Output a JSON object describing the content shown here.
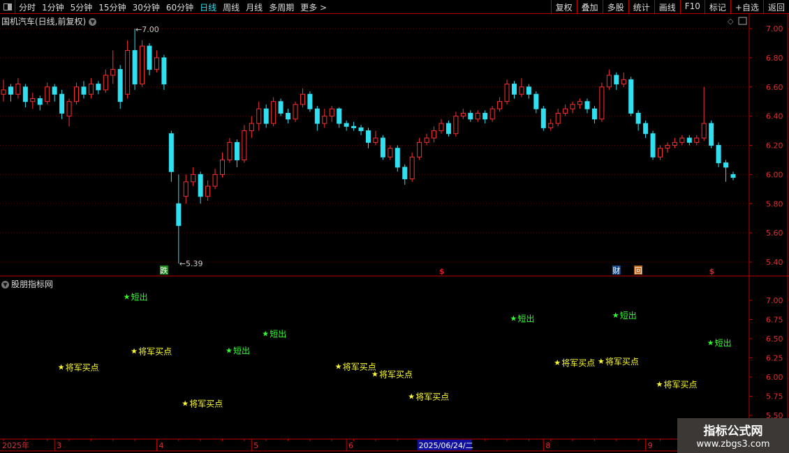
{
  "toolbar": {
    "periods": [
      "分时",
      "1分钟",
      "5分钟",
      "15分钟",
      "30分钟",
      "60分钟",
      "日线",
      "周线",
      "月线",
      "多周期",
      "更多 >"
    ],
    "active": "日线",
    "tools": [
      "复权",
      "叠加",
      "多股",
      "统计",
      "画线",
      "F10",
      "标记",
      "+自选",
      "返回"
    ]
  },
  "main": {
    "title": "国机汽车(日线,前复权)",
    "max_label": "7.00",
    "min_label": "5.39",
    "price_axis": [
      "7.00",
      "6.80",
      "6.60",
      "6.40",
      "6.20",
      "6.00",
      "5.80",
      "5.60",
      "5.40"
    ],
    "markers": [
      {
        "i": 22,
        "text": "跌",
        "color": "#1a8a1a"
      },
      {
        "i": 60,
        "text": "$",
        "color": "#e02020"
      },
      {
        "i": 84,
        "text": "财",
        "color": "#1a4a8a"
      },
      {
        "i": 87,
        "text": "回",
        "color": "#c06010"
      },
      {
        "i": 97,
        "text": "$",
        "color": "#e02020"
      }
    ]
  },
  "indicator": {
    "title": "股朋指标网",
    "axis": [
      "7.00",
      "6.75",
      "6.50",
      "6.25",
      "6.00",
      "5.75",
      "5.50"
    ],
    "signals": [
      {
        "i": 8,
        "v": 6.13,
        "text": "将军买点",
        "color": "#ffff30"
      },
      {
        "i": 17,
        "v": 7.05,
        "text": "短出",
        "color": "#30ff30"
      },
      {
        "i": 18,
        "v": 6.34,
        "text": "将军买点",
        "color": "#ffff30"
      },
      {
        "i": 25,
        "v": 5.66,
        "text": "将军买点",
        "color": "#ffff30"
      },
      {
        "i": 31,
        "v": 6.35,
        "text": "短出",
        "color": "#30ff30"
      },
      {
        "i": 36,
        "v": 6.57,
        "text": "短出",
        "color": "#30ff30"
      },
      {
        "i": 46,
        "v": 6.14,
        "text": "将军买点",
        "color": "#ffff30"
      },
      {
        "i": 51,
        "v": 6.04,
        "text": "将军买点",
        "color": "#ffff30"
      },
      {
        "i": 56,
        "v": 5.75,
        "text": "将军买点",
        "color": "#ffff30"
      },
      {
        "i": 70,
        "v": 6.77,
        "text": "短出",
        "color": "#30ff30"
      },
      {
        "i": 76,
        "v": 6.19,
        "text": "将军买点",
        "color": "#ffff30"
      },
      {
        "i": 82,
        "v": 6.21,
        "text": "将军买点",
        "color": "#ffff30"
      },
      {
        "i": 84,
        "v": 6.81,
        "text": "短出",
        "color": "#30ff30"
      },
      {
        "i": 90,
        "v": 5.91,
        "text": "将军买点",
        "color": "#ffff30"
      },
      {
        "i": 97,
        "v": 6.45,
        "text": "短出",
        "color": "#30ff30"
      }
    ]
  },
  "date_axis": {
    "year": "2025年",
    "months": [
      {
        "i": 7,
        "label": "3"
      },
      {
        "i": 21,
        "label": "4"
      },
      {
        "i": 34,
        "label": "5"
      },
      {
        "i": 47,
        "label": "6"
      },
      {
        "i": 74,
        "label": "8"
      },
      {
        "i": 88,
        "label": "9"
      }
    ],
    "cursor": {
      "i": 57,
      "label": "2025/06/24/二"
    }
  },
  "watermark": {
    "line1": "指标公式网",
    "line2": "www.zbgs3.com"
  },
  "colors": {
    "up": "#ff3030",
    "down": "#30e0f0",
    "axis": "#c00000"
  },
  "chart_data": {
    "type": "candlestick",
    "ylim": [
      5.35,
      7.05
    ],
    "ohlc": [
      [
        6.55,
        6.65,
        6.5,
        6.58
      ],
      [
        6.6,
        6.62,
        6.5,
        6.55
      ],
      [
        6.55,
        6.66,
        6.52,
        6.62
      ],
      [
        6.6,
        6.62,
        6.46,
        6.5
      ],
      [
        6.5,
        6.56,
        6.45,
        6.52
      ],
      [
        6.52,
        6.54,
        6.44,
        6.48
      ],
      [
        6.5,
        6.63,
        6.48,
        6.6
      ],
      [
        6.6,
        6.62,
        6.5,
        6.55
      ],
      [
        6.55,
        6.58,
        6.38,
        6.42
      ],
      [
        6.4,
        6.52,
        6.33,
        6.5
      ],
      [
        6.5,
        6.63,
        6.48,
        6.6
      ],
      [
        6.6,
        6.64,
        6.52,
        6.55
      ],
      [
        6.55,
        6.66,
        6.52,
        6.62
      ],
      [
        6.62,
        6.64,
        6.55,
        6.58
      ],
      [
        6.58,
        6.72,
        6.56,
        6.68
      ],
      [
        6.68,
        6.85,
        6.62,
        6.72
      ],
      [
        6.72,
        6.75,
        6.45,
        6.5
      ],
      [
        6.55,
        6.92,
        6.52,
        6.85
      ],
      [
        6.85,
        7.0,
        6.58,
        6.62
      ],
      [
        6.62,
        6.92,
        6.6,
        6.88
      ],
      [
        6.88,
        6.9,
        6.68,
        6.72
      ],
      [
        6.72,
        6.85,
        6.7,
        6.8
      ],
      [
        6.8,
        6.82,
        6.58,
        6.62
      ],
      [
        6.28,
        6.3,
        5.95,
        6.02
      ],
      [
        5.8,
        6.0,
        5.39,
        5.65
      ],
      [
        5.85,
        6.0,
        5.8,
        5.95
      ],
      [
        5.95,
        6.05,
        5.92,
        6.0
      ],
      [
        6.0,
        6.02,
        5.8,
        5.85
      ],
      [
        5.85,
        5.96,
        5.82,
        5.92
      ],
      [
        5.92,
        6.04,
        5.9,
        6.0
      ],
      [
        6.0,
        6.15,
        5.98,
        6.1
      ],
      [
        6.1,
        6.25,
        6.08,
        6.22
      ],
      [
        6.22,
        6.24,
        6.05,
        6.1
      ],
      [
        6.1,
        6.34,
        6.08,
        6.3
      ],
      [
        6.3,
        6.4,
        6.25,
        6.35
      ],
      [
        6.35,
        6.5,
        6.3,
        6.45
      ],
      [
        6.45,
        6.48,
        6.32,
        6.35
      ],
      [
        6.35,
        6.53,
        6.33,
        6.5
      ],
      [
        6.5,
        6.52,
        6.4,
        6.42
      ],
      [
        6.42,
        6.45,
        6.35,
        6.38
      ],
      [
        6.38,
        6.5,
        6.36,
        6.48
      ],
      [
        6.48,
        6.59,
        6.46,
        6.55
      ],
      [
        6.55,
        6.57,
        6.43,
        6.45
      ],
      [
        6.45,
        6.47,
        6.3,
        6.35
      ],
      [
        6.35,
        6.45,
        6.32,
        6.4
      ],
      [
        6.4,
        6.47,
        6.36,
        6.45
      ],
      [
        6.45,
        6.46,
        6.32,
        6.35
      ],
      [
        6.35,
        6.37,
        6.3,
        6.33
      ],
      [
        6.33,
        6.36,
        6.3,
        6.32
      ],
      [
        6.32,
        6.34,
        6.27,
        6.3
      ],
      [
        6.3,
        6.32,
        6.18,
        6.22
      ],
      [
        6.22,
        6.3,
        6.2,
        6.25
      ],
      [
        6.25,
        6.27,
        6.1,
        6.12
      ],
      [
        6.12,
        6.2,
        6.1,
        6.18
      ],
      [
        6.18,
        6.2,
        6.02,
        6.05
      ],
      [
        6.05,
        6.07,
        5.93,
        5.97
      ],
      [
        5.97,
        6.15,
        5.95,
        6.12
      ],
      [
        6.12,
        6.25,
        6.1,
        6.22
      ],
      [
        6.22,
        6.28,
        6.2,
        6.25
      ],
      [
        6.25,
        6.33,
        6.22,
        6.3
      ],
      [
        6.3,
        6.38,
        6.28,
        6.35
      ],
      [
        6.35,
        6.37,
        6.26,
        6.28
      ],
      [
        6.28,
        6.43,
        6.26,
        6.4
      ],
      [
        6.4,
        6.45,
        6.38,
        6.42
      ],
      [
        6.42,
        6.44,
        6.36,
        6.38
      ],
      [
        6.38,
        6.44,
        6.36,
        6.42
      ],
      [
        6.42,
        6.44,
        6.35,
        6.38
      ],
      [
        6.38,
        6.47,
        6.36,
        6.45
      ],
      [
        6.45,
        6.53,
        6.43,
        6.5
      ],
      [
        6.5,
        6.65,
        6.48,
        6.62
      ],
      [
        6.62,
        6.64,
        6.52,
        6.55
      ],
      [
        6.55,
        6.66,
        6.53,
        6.6
      ],
      [
        6.6,
        6.62,
        6.52,
        6.55
      ],
      [
        6.55,
        6.57,
        6.42,
        6.45
      ],
      [
        6.45,
        6.47,
        6.3,
        6.32
      ],
      [
        6.32,
        6.38,
        6.3,
        6.35
      ],
      [
        6.35,
        6.45,
        6.33,
        6.42
      ],
      [
        6.42,
        6.48,
        6.4,
        6.45
      ],
      [
        6.45,
        6.5,
        6.42,
        6.48
      ],
      [
        6.48,
        6.52,
        6.45,
        6.5
      ],
      [
        6.5,
        6.52,
        6.42,
        6.45
      ],
      [
        6.45,
        6.47,
        6.35,
        6.38
      ],
      [
        6.38,
        6.63,
        6.36,
        6.6
      ],
      [
        6.6,
        6.72,
        6.58,
        6.68
      ],
      [
        6.68,
        6.7,
        6.58,
        6.62
      ],
      [
        6.62,
        6.7,
        6.6,
        6.65
      ],
      [
        6.65,
        6.67,
        6.4,
        6.42
      ],
      [
        6.42,
        6.44,
        6.3,
        6.35
      ],
      [
        6.35,
        6.37,
        6.25,
        6.28
      ],
      [
        6.28,
        6.3,
        6.1,
        6.12
      ],
      [
        6.12,
        6.2,
        6.1,
        6.18
      ],
      [
        6.18,
        6.22,
        6.15,
        6.2
      ],
      [
        6.2,
        6.25,
        6.18,
        6.22
      ],
      [
        6.22,
        6.27,
        6.2,
        6.25
      ],
      [
        6.25,
        6.27,
        6.2,
        6.22
      ],
      [
        6.22,
        6.27,
        6.2,
        6.25
      ],
      [
        6.25,
        6.6,
        6.23,
        6.35
      ],
      [
        6.35,
        6.37,
        6.18,
        6.2
      ],
      [
        6.2,
        6.22,
        6.05,
        6.08
      ],
      [
        6.08,
        6.1,
        5.95,
        6.05
      ],
      [
        6.0,
        6.02,
        5.96,
        5.98
      ]
    ]
  }
}
